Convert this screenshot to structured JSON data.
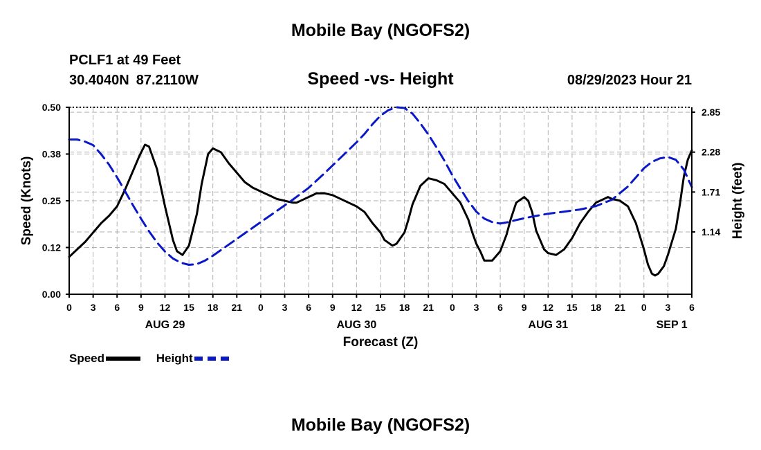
{
  "header": {
    "title": "Mobile Bay (NGOFS2)",
    "station": "PCLF1 at 49 Feet",
    "lat": "30.4040N",
    "lon": "87.2110W",
    "subtitle": "Speed -vs- Height",
    "datetime": "08/29/2023 Hour 21"
  },
  "footer": {
    "title": "Mobile Bay (NGOFS2)"
  },
  "legend": {
    "speed_label": "Speed",
    "height_label": "Height"
  },
  "colors": {
    "speed": "#000000",
    "height": "#0a18c8",
    "grid": "#b0b0b0"
  },
  "chart_data": {
    "type": "line",
    "title": "Speed -vs- Height",
    "xlabel": "Forecast (Z)",
    "ylabel": "Speed (Knots)",
    "ylabel_right": "Height (feet)",
    "x_unit": "hours since Aug 29 00Z",
    "xlim": [
      0,
      78
    ],
    "ylim": [
      0,
      0.5
    ],
    "ylim_right": [
      0.25,
      2.92
    ],
    "x_ticks": [
      0,
      3,
      6,
      9,
      12,
      15,
      18,
      21,
      24,
      27,
      30,
      33,
      36,
      39,
      42,
      45,
      48,
      51,
      54,
      57,
      60,
      63,
      66,
      69,
      72,
      75,
      78
    ],
    "x_tick_labels": [
      "0",
      "3",
      "6",
      "9",
      "12",
      "15",
      "18",
      "21",
      "0",
      "3",
      "6",
      "9",
      "12",
      "15",
      "18",
      "21",
      "0",
      "3",
      "6",
      "9",
      "12",
      "15",
      "18",
      "21",
      "0",
      "3",
      "6"
    ],
    "y_ticks": [
      0.0,
      0.125,
      0.25,
      0.375,
      0.5
    ],
    "y_tick_labels": [
      "0.00",
      "0.12",
      "0.25",
      "0.38",
      "0.50"
    ],
    "y_right_ticks": [
      1.14,
      1.71,
      2.28,
      2.85
    ],
    "y_right_tick_labels": [
      "1.14",
      "1.71",
      "2.28",
      "2.85"
    ],
    "day_labels": [
      {
        "x": 12,
        "label": "AUG 29"
      },
      {
        "x": 36,
        "label": "AUG 30"
      },
      {
        "x": 60,
        "label": "AUG 31"
      },
      {
        "x": 75.5,
        "label": "SEP 1"
      }
    ],
    "grid": true,
    "legend_position": "bottom-left",
    "series": [
      {
        "name": "Speed",
        "axis": "left",
        "style": "solid",
        "x": [
          0,
          2,
          4,
          5,
          6,
          7,
          8,
          8.8,
          9.5,
          10,
          11,
          12,
          13,
          13.5,
          14.2,
          15,
          16,
          16.6,
          17.4,
          18,
          19,
          20,
          21,
          22,
          23,
          24,
          25,
          26,
          27,
          28,
          28.5,
          29.5,
          30.5,
          31,
          32,
          33,
          34,
          35,
          36,
          37,
          37.5,
          38,
          39,
          39.5,
          40.5,
          41,
          42,
          42.5,
          43,
          44,
          45,
          46,
          47,
          47.6,
          48,
          49,
          50,
          50.5,
          51,
          51.5,
          52,
          53,
          54,
          54.8,
          55.3,
          56,
          57,
          57.5,
          58,
          58.5,
          59.5,
          60,
          61,
          62,
          63,
          64,
          65,
          66,
          67,
          67.5,
          68,
          69,
          70,
          71,
          72,
          72.5,
          73,
          73.4,
          73.8,
          74.5,
          75,
          76,
          76.5,
          77,
          77.5,
          78
        ],
        "y": [
          0.1,
          0.14,
          0.19,
          0.21,
          0.235,
          0.28,
          0.33,
          0.37,
          0.4,
          0.395,
          0.335,
          0.235,
          0.145,
          0.115,
          0.105,
          0.13,
          0.215,
          0.295,
          0.375,
          0.39,
          0.38,
          0.35,
          0.325,
          0.3,
          0.285,
          0.275,
          0.265,
          0.255,
          0.25,
          0.245,
          0.245,
          0.255,
          0.265,
          0.27,
          0.27,
          0.265,
          0.255,
          0.245,
          0.235,
          0.22,
          0.205,
          0.19,
          0.165,
          0.145,
          0.13,
          0.135,
          0.165,
          0.2,
          0.24,
          0.29,
          0.31,
          0.305,
          0.295,
          0.28,
          0.27,
          0.245,
          0.2,
          0.165,
          0.135,
          0.115,
          0.09,
          0.09,
          0.115,
          0.16,
          0.2,
          0.245,
          0.26,
          0.25,
          0.22,
          0.17,
          0.12,
          0.11,
          0.105,
          0.12,
          0.15,
          0.19,
          0.22,
          0.245,
          0.255,
          0.26,
          0.255,
          0.25,
          0.235,
          0.19,
          0.12,
          0.08,
          0.055,
          0.05,
          0.055,
          0.075,
          0.105,
          0.175,
          0.24,
          0.315,
          0.36,
          0.385
        ]
      },
      {
        "name": "Height",
        "axis": "right",
        "style": "dashed",
        "x": [
          0,
          1,
          2,
          3,
          4,
          5,
          6,
          7,
          8,
          9,
          10,
          11,
          12,
          13,
          14,
          15,
          16,
          17,
          18,
          20,
          22,
          24,
          26,
          28,
          30,
          32,
          34,
          36,
          37,
          38,
          39,
          40,
          41,
          42,
          43,
          44,
          45,
          46,
          47,
          48,
          49,
          50,
          51,
          52,
          53,
          54,
          55,
          56,
          58,
          60,
          62,
          64,
          66,
          68,
          70,
          72,
          73,
          74,
          75,
          76,
          77,
          78
        ],
        "y": [
          2.46,
          2.46,
          2.43,
          2.38,
          2.25,
          2.1,
          1.92,
          1.72,
          1.52,
          1.33,
          1.15,
          0.99,
          0.86,
          0.76,
          0.7,
          0.67,
          0.68,
          0.73,
          0.8,
          0.96,
          1.12,
          1.28,
          1.44,
          1.6,
          1.77,
          1.98,
          2.2,
          2.42,
          2.54,
          2.68,
          2.8,
          2.88,
          2.92,
          2.91,
          2.83,
          2.69,
          2.53,
          2.35,
          2.16,
          1.95,
          1.76,
          1.58,
          1.43,
          1.33,
          1.28,
          1.26,
          1.28,
          1.31,
          1.36,
          1.4,
          1.43,
          1.46,
          1.51,
          1.6,
          1.79,
          2.05,
          2.14,
          2.19,
          2.21,
          2.17,
          2.03,
          1.78
        ]
      }
    ]
  }
}
